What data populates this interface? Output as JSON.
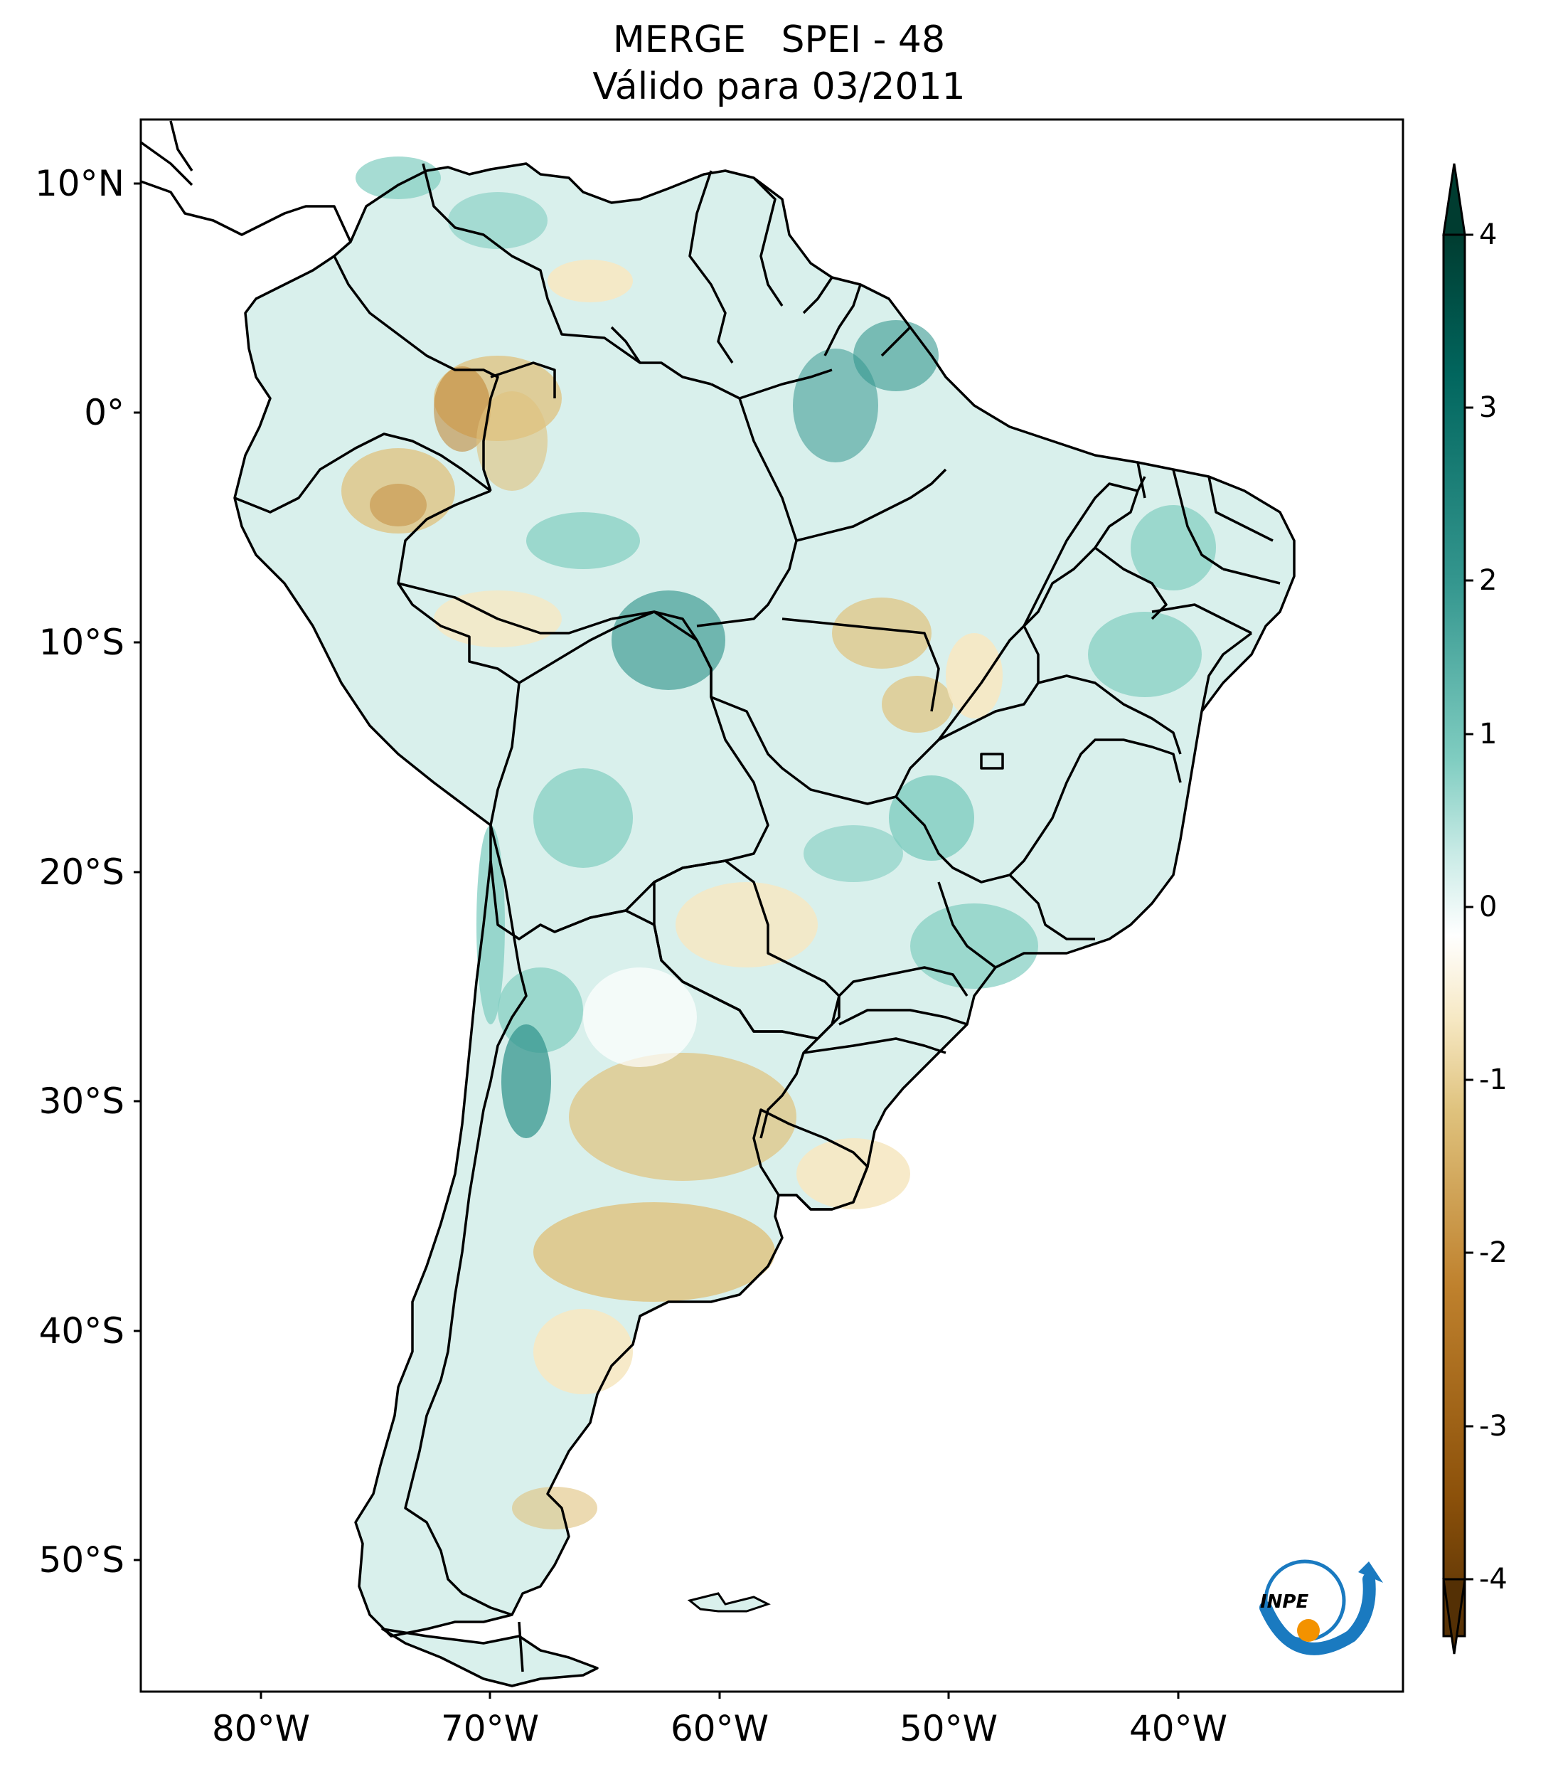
{
  "title": {
    "line1": "MERGE   SPEI - 48",
    "line2": "Válido para 03/2011"
  },
  "axes": {
    "lat_ticks": [
      "10°N",
      "0°",
      "10°S",
      "20°S",
      "30°S",
      "40°S",
      "50°S"
    ],
    "lon_ticks": [
      "80°W",
      "70°W",
      "60°W",
      "50°W",
      "40°W"
    ],
    "lat_range": [
      -56,
      13
    ],
    "lon_range": [
      -85,
      -30
    ]
  },
  "colorbar": {
    "ticks": [
      "4",
      "3",
      "2",
      "1",
      "0",
      "-1",
      "-2",
      "-3",
      "-4"
    ],
    "range": [
      -4,
      4
    ],
    "colormap": "BrBG",
    "colors": [
      "#543005",
      "#8c510a",
      "#bf812d",
      "#dfc27d",
      "#f6e8c3",
      "#ffffff",
      "#c7eae5",
      "#80cdc1",
      "#35978f",
      "#01665e",
      "#003c30"
    ],
    "extend": "both"
  },
  "logo": {
    "text": "INPE",
    "colors": {
      "arrow": "#1a7ac0",
      "dot": "#f39200"
    }
  },
  "colors": {
    "wet": "#80cdc1",
    "strong_wet": "#35978f",
    "dry": "#dfc27d",
    "strong_dry": "#bf812d",
    "border": "#000000"
  }
}
